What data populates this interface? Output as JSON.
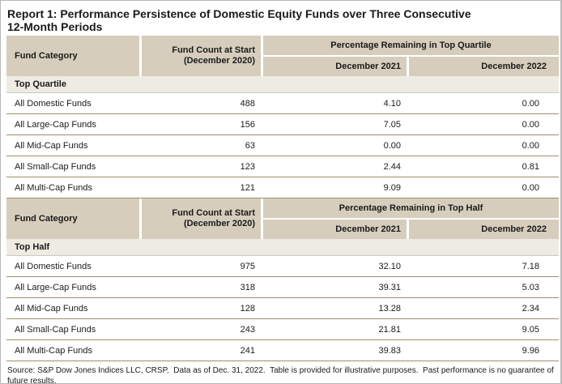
{
  "page": {
    "title_line1": "Report 1: Performance Persistence of Domestic Equity Funds over Three Consecutive",
    "title_line2": "12-Month Periods",
    "footer": "Source: S&P Dow Jones Indices LLC, CRSP.  Data as of Dec. 31, 2022.  Table is provided for illustrative purposes.  Past performance is no guarantee of future results."
  },
  "colors": {
    "header-bg": "#d6cdbd",
    "section-bg": "#eeebe2",
    "row-line": "#9e8f6c",
    "section-line": "#c9c9c9",
    "text": "#1a1a1a",
    "border": "#b9b9b9"
  },
  "tables": [
    {
      "col_category": "Fund Category",
      "count_line1": "Fund Count at Start",
      "count_line2": "(December 2020)",
      "group_header": "Percentage Remaining in Top Quartile",
      "col_dec2021": "December 2021",
      "col_dec2022": "December 2022",
      "section": "Top Quartile",
      "rows": [
        {
          "category": "All Domestic Funds",
          "count": "488",
          "dec2021": "4.10",
          "dec2022": "0.00"
        },
        {
          "category": "All Large-Cap Funds",
          "count": "156",
          "dec2021": "7.05",
          "dec2022": "0.00"
        },
        {
          "category": "All Mid-Cap Funds",
          "count": "63",
          "dec2021": "0.00",
          "dec2022": "0.00"
        },
        {
          "category": "All Small-Cap Funds",
          "count": "123",
          "dec2021": "2.44",
          "dec2022": "0.81"
        },
        {
          "category": "All Multi-Cap Funds",
          "count": "121",
          "dec2021": "9.09",
          "dec2022": "0.00"
        }
      ]
    },
    {
      "col_category": "Fund Category",
      "count_line1": "Fund Count at Start",
      "count_line2": "(December 2020)",
      "group_header": "Percentage Remaining in Top Half",
      "col_dec2021": "December 2021",
      "col_dec2022": "December 2022",
      "section": "Top Half",
      "rows": [
        {
          "category": "All Domestic Funds",
          "count": "975",
          "dec2021": "32.10",
          "dec2022": "7.18"
        },
        {
          "category": "All Large-Cap Funds",
          "count": "318",
          "dec2021": "39.31",
          "dec2022": "5.03"
        },
        {
          "category": "All Mid-Cap Funds",
          "count": "128",
          "dec2021": "13.28",
          "dec2022": "2.34"
        },
        {
          "category": "All Small-Cap Funds",
          "count": "243",
          "dec2021": "21.81",
          "dec2022": "9.05"
        },
        {
          "category": "All Multi-Cap Funds",
          "count": "241",
          "dec2021": "39.83",
          "dec2022": "9.96"
        }
      ]
    }
  ]
}
